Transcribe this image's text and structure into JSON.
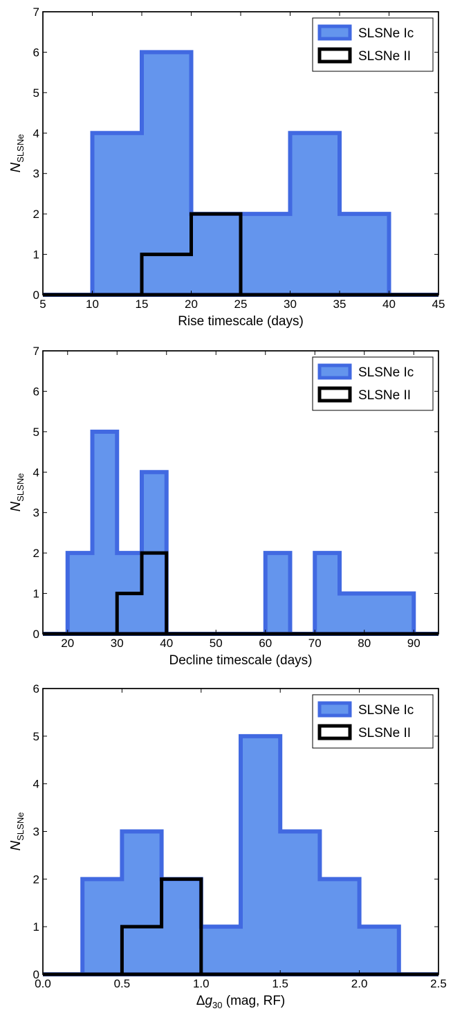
{
  "chart_data": [
    {
      "type": "histogram",
      "xlabel": "Rise timescale (days)",
      "ylabel": "N",
      "ylabel_sub": "SLSNe",
      "xlim": [
        5,
        45
      ],
      "ylim": [
        0,
        7
      ],
      "xticks": [
        "5",
        "10",
        "15",
        "20",
        "25",
        "30",
        "35",
        "40",
        "45"
      ],
      "xtick_values": [
        5,
        10,
        15,
        20,
        25,
        30,
        35,
        40,
        45
      ],
      "yticks": [
        "0",
        "1",
        "2",
        "3",
        "4",
        "5",
        "6",
        "7"
      ],
      "ytick_values": [
        0,
        1,
        2,
        3,
        4,
        5,
        6,
        7
      ],
      "legend_position": "top-right",
      "series": [
        {
          "name": "SLSNe Ic",
          "style": "filled",
          "fill": "#6495ed",
          "edge": "#4169e1",
          "edges": [
            10,
            15,
            20,
            25,
            30,
            35,
            40
          ],
          "counts": [
            4,
            6,
            2,
            2,
            4,
            2
          ]
        },
        {
          "name": "SLSNe II",
          "style": "step",
          "edge": "#000000",
          "edges": [
            15,
            20,
            25
          ],
          "counts": [
            1,
            2
          ]
        }
      ]
    },
    {
      "type": "histogram",
      "xlabel": "Decline timescale (days)",
      "ylabel": "N",
      "ylabel_sub": "SLSNe",
      "xlim": [
        15,
        95
      ],
      "ylim": [
        0,
        7
      ],
      "xticks": [
        "20",
        "30",
        "40",
        "50",
        "60",
        "70",
        "80",
        "90"
      ],
      "xtick_values": [
        20,
        30,
        40,
        50,
        60,
        70,
        80,
        90
      ],
      "yticks": [
        "0",
        "1",
        "2",
        "3",
        "4",
        "5",
        "6",
        "7"
      ],
      "ytick_values": [
        0,
        1,
        2,
        3,
        4,
        5,
        6,
        7
      ],
      "legend_position": "top-right",
      "series": [
        {
          "name": "SLSNe Ic",
          "style": "filled",
          "fill": "#6495ed",
          "edge": "#4169e1",
          "edges": [
            20,
            25,
            30,
            35,
            40,
            45,
            50,
            55,
            60,
            65,
            70,
            75,
            80,
            85,
            90
          ],
          "counts": [
            2,
            5,
            2,
            4,
            0,
            0,
            0,
            0,
            2,
            0,
            2,
            1,
            1,
            1
          ]
        },
        {
          "name": "SLSNe II",
          "style": "step",
          "edge": "#000000",
          "edges": [
            30,
            35,
            40
          ],
          "counts": [
            1,
            2
          ]
        }
      ]
    },
    {
      "type": "histogram",
      "xlabel_pre": "Δ",
      "xlabel_var": "g",
      "xlabel_sub": "30",
      "xlabel_post": " (mag, RF)",
      "ylabel": "N",
      "ylabel_sub": "SLSNe",
      "xlim": [
        0.0,
        2.5
      ],
      "ylim": [
        0,
        6
      ],
      "xticks": [
        "0.0",
        "0.5",
        "1.0",
        "1.5",
        "2.0",
        "2.5"
      ],
      "xtick_values": [
        0.0,
        0.5,
        1.0,
        1.5,
        2.0,
        2.5
      ],
      "yticks": [
        "0",
        "1",
        "2",
        "3",
        "4",
        "5",
        "6"
      ],
      "ytick_values": [
        0,
        1,
        2,
        3,
        4,
        5,
        6
      ],
      "legend_position": "top-right",
      "series": [
        {
          "name": "SLSNe Ic",
          "style": "filled",
          "fill": "#6495ed",
          "edge": "#4169e1",
          "edges": [
            0.25,
            0.5,
            0.75,
            1.0,
            1.25,
            1.5,
            1.75,
            2.0,
            2.25
          ],
          "counts": [
            2,
            3,
            2,
            1,
            5,
            3,
            2,
            1
          ]
        },
        {
          "name": "SLSNe II",
          "style": "step",
          "edge": "#000000",
          "edges": [
            0.5,
            0.75,
            1.0
          ],
          "counts": [
            1,
            2
          ]
        }
      ]
    }
  ]
}
